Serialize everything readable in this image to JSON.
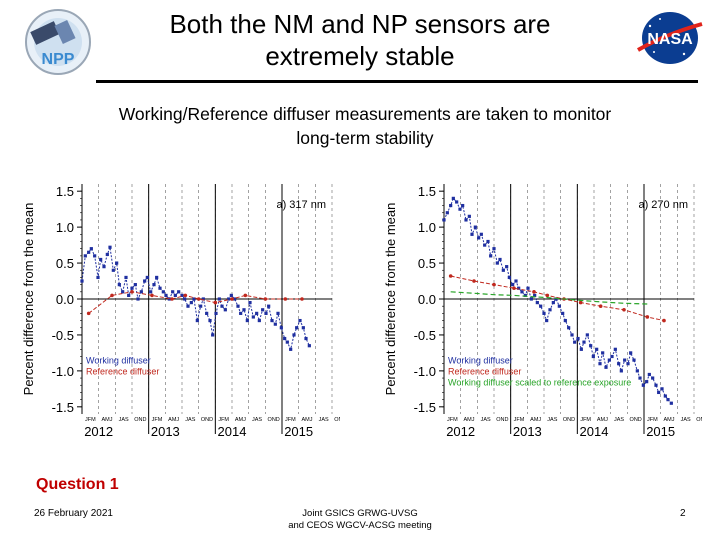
{
  "slide": {
    "title_lines": [
      "Both the NM and NP sensors are",
      "extremely stable"
    ],
    "subtitle_lines": [
      "Working/Reference diffuser measurements are taken to monitor",
      "long-term stability"
    ],
    "question": "Question 1",
    "footer": {
      "date": "26 February 2021",
      "meeting_lines": [
        "Joint GSICS GRWG-UVSG",
        "and CEOS WGCV-ACSG meeting"
      ],
      "page": "2"
    },
    "logos": {
      "left": "NPP",
      "right": "NASA"
    }
  },
  "colors": {
    "working": "#1f2fa0",
    "reference": "#c0281e",
    "scaled": "#2aa52a",
    "nasa_blue": "#0b3d91",
    "nasa_red": "#e0241b"
  },
  "chart_data": [
    {
      "type": "line",
      "panel_label": "a) 317 nm",
      "ylabel": "Percent difference from the mean",
      "ylim": [
        -1.6,
        1.6
      ],
      "yticks": [
        1.5,
        1.0,
        0.5,
        0.0,
        -0.5,
        -1.0,
        -1.5
      ],
      "ytick_labels": [
        "1.5",
        "1.0",
        "0.5",
        "0.0",
        "-0.5",
        "-1.0",
        "-1.5"
      ],
      "xlim": [
        2012.0,
        2015.75
      ],
      "year_labels": [
        "2012",
        "2013",
        "2014",
        "2015"
      ],
      "year_positions": [
        2012.25,
        2013.25,
        2014.25,
        2015.25
      ],
      "season_labels": [
        "JFM",
        "AMJ",
        "JAS",
        "OND",
        "JFM",
        "AMJ",
        "JAS",
        "OND",
        "JFM",
        "AMJ",
        "JAS",
        "OND",
        "JFM",
        "AMJ",
        "JAS",
        "OND"
      ],
      "legend": [
        "Working diffuser",
        "Reference diffuser"
      ],
      "series": [
        {
          "name": "Working diffuser",
          "x": [
            2012.0,
            2012.05,
            2012.1,
            2012.14,
            2012.19,
            2012.24,
            2012.28,
            2012.33,
            2012.38,
            2012.42,
            2012.47,
            2012.52,
            2012.56,
            2012.61,
            2012.66,
            2012.7,
            2012.75,
            2012.8,
            2012.84,
            2012.89,
            2012.94,
            2012.98,
            2013.03,
            2013.08,
            2013.12,
            2013.17,
            2013.22,
            2013.26,
            2013.31,
            2013.36,
            2013.4,
            2013.45,
            2013.5,
            2013.54,
            2013.59,
            2013.64,
            2013.68,
            2013.73,
            2013.78,
            2013.82,
            2013.87,
            2013.92,
            2013.96,
            2014.01,
            2014.06,
            2014.1,
            2014.15,
            2014.2,
            2014.24,
            2014.29,
            2014.34,
            2014.38,
            2014.43,
            2014.48,
            2014.52,
            2014.57,
            2014.62,
            2014.66,
            2014.71,
            2014.76,
            2014.8,
            2014.85,
            2014.9,
            2014.94,
            2014.99,
            2015.04,
            2015.08,
            2015.13,
            2015.18,
            2015.22,
            2015.27,
            2015.32,
            2015.36,
            2015.41
          ],
          "y": [
            0.25,
            0.6,
            0.65,
            0.7,
            0.6,
            0.3,
            0.55,
            0.45,
            0.62,
            0.72,
            0.4,
            0.5,
            0.2,
            0.1,
            0.3,
            0.05,
            0.15,
            0.2,
            0.0,
            0.1,
            0.25,
            0.3,
            0.1,
            0.2,
            0.3,
            0.15,
            0.1,
            0.05,
            0.0,
            0.1,
            0.05,
            0.1,
            0.05,
            0.0,
            -0.1,
            -0.05,
            0.0,
            -0.3,
            -0.1,
            0.0,
            -0.2,
            -0.3,
            -0.5,
            -0.2,
            0.0,
            -0.1,
            -0.15,
            0.0,
            0.05,
            0.0,
            -0.1,
            -0.2,
            -0.15,
            -0.3,
            -0.05,
            -0.25,
            -0.2,
            -0.3,
            -0.15,
            -0.2,
            -0.1,
            -0.3,
            -0.35,
            -0.2,
            -0.4,
            -0.55,
            -0.6,
            -0.7,
            -0.5,
            -0.4,
            -0.3,
            -0.4,
            -0.55,
            -0.65
          ]
        },
        {
          "name": "Reference diffuser",
          "x": [
            2012.1,
            2012.45,
            2012.75,
            2013.05,
            2013.35,
            2013.55,
            2013.75,
            2014.0,
            2014.25,
            2014.45,
            2014.75,
            2015.05,
            2015.3
          ],
          "y": [
            -0.2,
            0.05,
            0.1,
            0.05,
            0.0,
            0.05,
            0.0,
            -0.05,
            0.0,
            0.05,
            0.0,
            0.0,
            0.0
          ]
        }
      ]
    },
    {
      "type": "line",
      "panel_label": "a) 270 nm",
      "ylabel": "Percent difference from the mean",
      "ylim": [
        -1.6,
        1.6
      ],
      "yticks": [
        1.5,
        1.0,
        0.5,
        0.0,
        -0.5,
        -1.0,
        -1.5
      ],
      "ytick_labels": [
        "1.5",
        "1.0",
        "0.5",
        "0.0",
        "-0.5",
        "-1.0",
        "-1.5"
      ],
      "xlim": [
        2012.0,
        2015.75
      ],
      "year_labels": [
        "2012",
        "2013",
        "2014",
        "2015"
      ],
      "year_positions": [
        2012.25,
        2013.25,
        2014.25,
        2015.25
      ],
      "season_labels": [
        "JFM",
        "AMJ",
        "JAS",
        "OND",
        "JFM",
        "AMJ",
        "JAS",
        "OND",
        "JFM",
        "AMJ",
        "JAS",
        "OND",
        "JFM",
        "AMJ",
        "JAS",
        "OND"
      ],
      "legend": [
        "Working diffuser",
        "Reference diffuser",
        "Working diffuser scaled to reference exposure"
      ],
      "series": [
        {
          "name": "Working diffuser",
          "x": [
            2012.0,
            2012.05,
            2012.1,
            2012.14,
            2012.19,
            2012.24,
            2012.28,
            2012.33,
            2012.38,
            2012.42,
            2012.47,
            2012.52,
            2012.56,
            2012.61,
            2012.66,
            2012.7,
            2012.75,
            2012.8,
            2012.84,
            2012.89,
            2012.94,
            2012.98,
            2013.03,
            2013.08,
            2013.12,
            2013.17,
            2013.22,
            2013.26,
            2013.31,
            2013.36,
            2013.4,
            2013.45,
            2013.5,
            2013.54,
            2013.59,
            2013.64,
            2013.68,
            2013.73,
            2013.78,
            2013.82,
            2013.87,
            2013.92,
            2013.96,
            2014.01,
            2014.06,
            2014.1,
            2014.15,
            2014.2,
            2014.24,
            2014.29,
            2014.34,
            2014.38,
            2014.43,
            2014.48,
            2014.52,
            2014.57,
            2014.62,
            2014.66,
            2014.71,
            2014.76,
            2014.8,
            2014.85,
            2014.9,
            2014.94,
            2014.99,
            2015.04,
            2015.08,
            2015.13,
            2015.18,
            2015.22,
            2015.27,
            2015.32,
            2015.36,
            2015.41
          ],
          "y": [
            1.1,
            1.2,
            1.3,
            1.4,
            1.35,
            1.25,
            1.3,
            1.1,
            1.15,
            0.9,
            1.0,
            0.85,
            0.9,
            0.75,
            0.8,
            0.6,
            0.7,
            0.5,
            0.55,
            0.4,
            0.45,
            0.3,
            0.2,
            0.25,
            0.15,
            0.1,
            0.05,
            0.15,
            0.0,
            0.05,
            -0.05,
            -0.1,
            -0.2,
            -0.3,
            -0.15,
            -0.05,
            0.0,
            -0.1,
            -0.2,
            -0.3,
            -0.4,
            -0.5,
            -0.6,
            -0.55,
            -0.7,
            -0.6,
            -0.5,
            -0.65,
            -0.8,
            -0.7,
            -0.9,
            -0.75,
            -0.95,
            -0.85,
            -0.8,
            -0.7,
            -0.9,
            -1.0,
            -0.85,
            -0.9,
            -0.75,
            -0.85,
            -1.0,
            -1.1,
            -1.2,
            -1.15,
            -1.05,
            -1.1,
            -1.2,
            -1.3,
            -1.25,
            -1.35,
            -1.4,
            -1.45
          ]
        },
        {
          "name": "Reference diffuser",
          "x": [
            2012.1,
            2012.45,
            2012.75,
            2013.05,
            2013.35,
            2013.55,
            2013.8,
            2014.05,
            2014.35,
            2014.7,
            2015.05,
            2015.3
          ],
          "y": [
            0.32,
            0.25,
            0.2,
            0.15,
            0.1,
            0.05,
            0.0,
            -0.05,
            -0.1,
            -0.15,
            -0.25,
            -0.3
          ]
        },
        {
          "name": "Working diffuser scaled to reference exposure",
          "x": [
            2012.1,
            2012.45,
            2012.75,
            2013.05,
            2013.35,
            2013.55,
            2013.8,
            2014.05,
            2014.35,
            2014.7,
            2015.05
          ],
          "y": [
            0.1,
            0.08,
            0.06,
            0.05,
            0.03,
            0.02,
            0.0,
            -0.02,
            -0.04,
            -0.06,
            -0.07
          ]
        }
      ]
    }
  ]
}
